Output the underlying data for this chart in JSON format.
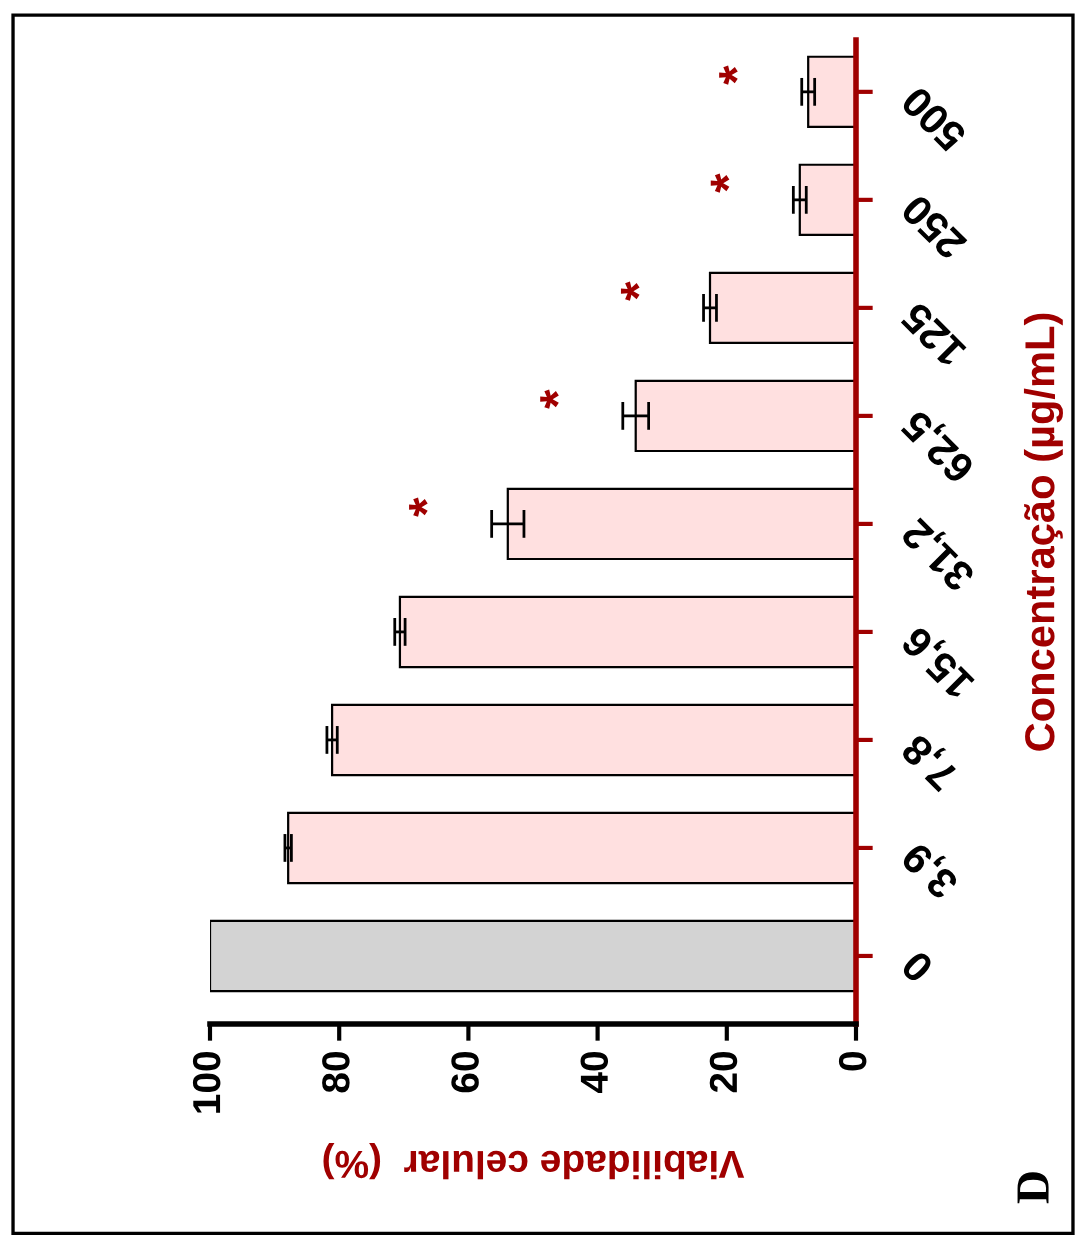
{
  "chart_data": {
    "type": "bar",
    "orientation": "horizontal",
    "xlabel": "Viabilidade celular  (%)",
    "ylabel": "Concentração (µg/mL)",
    "categories": [
      "500",
      "250",
      "125",
      "62,5",
      "31,2",
      "15,6",
      "7,8",
      "3,9",
      "0"
    ],
    "values": [
      7.4,
      8.7,
      22.6,
      34.1,
      53.9,
      70.6,
      81.1,
      87.9,
      100
    ],
    "errors": [
      1,
      1,
      1,
      2,
      2.5,
      0.8,
      0.8,
      0.5,
      null
    ],
    "colors": [
      "#ffe0e0",
      "#ffe0e0",
      "#ffe0e0",
      "#ffe0e0",
      "#ffe0e0",
      "#ffe0e0",
      "#ffe0e0",
      "#ffe0e0",
      "#d3d3d3"
    ],
    "xlim": [
      100,
      0
    ],
    "xticks": [
      0,
      20,
      40,
      60,
      80,
      100
    ],
    "grid": false,
    "annotations": [
      {
        "text": "*",
        "x": 53.9,
        "y": "31,2"
      },
      {
        "text": "*",
        "x": 34.1,
        "y": "62,5"
      },
      {
        "text": "*",
        "x": 22.6,
        "y": "125"
      },
      {
        "text": "*",
        "x": 8.7,
        "y": "250"
      },
      {
        "text": "*",
        "x": 7.4,
        "y": "500"
      },
      "D"
    ]
  }
}
